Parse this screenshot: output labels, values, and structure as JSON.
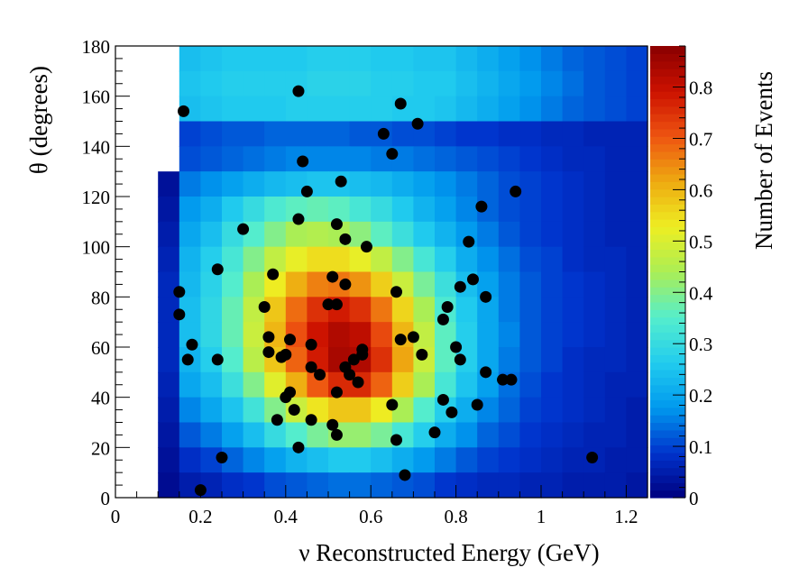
{
  "chart_data": {
    "type": "heatmap",
    "xlabel": "ν Reconstructed Energy (GeV)",
    "ylabel": "θ (degrees)",
    "colorbar_label": "Number of Events",
    "xlim": [
      0,
      1.25
    ],
    "ylim": [
      0,
      180
    ],
    "x_ticks": [
      0,
      0.2,
      0.4,
      0.6,
      0.8,
      1,
      1.2
    ],
    "x_tick_labels": [
      "0",
      "0.2",
      "0.4",
      "0.6",
      "0.8",
      "1",
      "1.2"
    ],
    "y_ticks": [
      0,
      20,
      40,
      60,
      80,
      100,
      120,
      140,
      160,
      180
    ],
    "y_tick_labels": [
      "0",
      "20",
      "40",
      "60",
      "80",
      "100",
      "120",
      "140",
      "160",
      "180"
    ],
    "zlim": [
      0,
      0.88
    ],
    "z_ticks": [
      0,
      0.1,
      0.2,
      0.3,
      0.4,
      0.5,
      0.6,
      0.7,
      0.8
    ],
    "z_tick_labels": [
      "0",
      "0.1",
      "0.2",
      "0.3",
      "0.4",
      "0.5",
      "0.6",
      "0.7",
      "0.8"
    ],
    "colormap": [
      "#00007f",
      "#0033cc",
      "#0099ee",
      "#22ccee",
      "#55eecc",
      "#aaee55",
      "#eeee22",
      "#eeaa11",
      "#ee5511",
      "#cc1100",
      "#8a0000"
    ],
    "heatmap": {
      "x_edges_start": 0.1,
      "x_bin_width": 0.05,
      "y_bin_width": 10,
      "rows_y_start": 180,
      "rows": [
        [
          null,
          0.24,
          0.25,
          0.26,
          0.26,
          0.26,
          0.26,
          0.27,
          0.27,
          0.27,
          0.26,
          0.26,
          0.25,
          0.25,
          0.23,
          0.21,
          0.19,
          0.17,
          0.15,
          0.13,
          0.12,
          0.11,
          0.1,
          0.09
        ],
        [
          null,
          0.25,
          0.26,
          0.27,
          0.27,
          0.27,
          0.27,
          0.28,
          0.28,
          0.28,
          0.27,
          0.27,
          0.26,
          0.26,
          0.24,
          0.22,
          0.2,
          0.18,
          0.16,
          0.14,
          0.12,
          0.11,
          0.1,
          0.09
        ],
        [
          null,
          0.24,
          0.25,
          0.26,
          0.26,
          0.26,
          0.27,
          0.27,
          0.27,
          0.27,
          0.27,
          0.26,
          0.26,
          0.25,
          0.23,
          0.21,
          0.19,
          0.17,
          0.15,
          0.13,
          0.12,
          0.11,
          0.1,
          0.09
        ],
        [
          null,
          0.1,
          0.11,
          0.12,
          0.12,
          0.13,
          0.13,
          0.13,
          0.13,
          0.12,
          0.12,
          0.11,
          0.11,
          0.1,
          0.09,
          0.09,
          0.08,
          0.08,
          0.07,
          0.07,
          0.06,
          0.06,
          0.06,
          0.05
        ],
        [
          null,
          0.11,
          0.12,
          0.13,
          0.14,
          0.15,
          0.16,
          0.16,
          0.16,
          0.16,
          0.15,
          0.15,
          0.14,
          0.13,
          0.12,
          0.11,
          0.1,
          0.09,
          0.08,
          0.07,
          0.07,
          0.06,
          0.06,
          0.05
        ],
        [
          0.03,
          0.15,
          0.17,
          0.19,
          0.21,
          0.23,
          0.24,
          0.25,
          0.25,
          0.24,
          0.23,
          0.21,
          0.19,
          0.17,
          0.15,
          0.13,
          0.11,
          0.1,
          0.09,
          0.08,
          0.07,
          0.06,
          0.06,
          0.05
        ],
        [
          0.04,
          0.18,
          0.21,
          0.26,
          0.3,
          0.34,
          0.36,
          0.37,
          0.36,
          0.33,
          0.3,
          0.26,
          0.22,
          0.19,
          0.16,
          0.13,
          0.11,
          0.1,
          0.09,
          0.08,
          0.07,
          0.06,
          0.06,
          0.05
        ],
        [
          0.05,
          0.2,
          0.24,
          0.3,
          0.35,
          0.4,
          0.44,
          0.45,
          0.44,
          0.41,
          0.36,
          0.31,
          0.26,
          0.22,
          0.18,
          0.15,
          0.12,
          0.1,
          0.09,
          0.08,
          0.07,
          0.06,
          0.06,
          0.05
        ],
        [
          0.06,
          0.22,
          0.27,
          0.33,
          0.4,
          0.47,
          0.52,
          0.55,
          0.55,
          0.52,
          0.47,
          0.4,
          0.33,
          0.27,
          0.21,
          0.17,
          0.14,
          0.11,
          0.1,
          0.08,
          0.07,
          0.07,
          0.06,
          0.05
        ],
        [
          0.07,
          0.23,
          0.28,
          0.35,
          0.44,
          0.53,
          0.61,
          0.66,
          0.67,
          0.64,
          0.57,
          0.48,
          0.39,
          0.31,
          0.24,
          0.19,
          0.15,
          0.12,
          0.1,
          0.09,
          0.08,
          0.07,
          0.06,
          0.05
        ],
        [
          0.07,
          0.24,
          0.29,
          0.37,
          0.47,
          0.58,
          0.68,
          0.75,
          0.78,
          0.75,
          0.67,
          0.56,
          0.44,
          0.34,
          0.26,
          0.2,
          0.15,
          0.12,
          0.1,
          0.09,
          0.08,
          0.07,
          0.06,
          0.05
        ],
        [
          0.07,
          0.24,
          0.29,
          0.37,
          0.48,
          0.6,
          0.71,
          0.79,
          0.83,
          0.81,
          0.72,
          0.6,
          0.47,
          0.36,
          0.27,
          0.2,
          0.16,
          0.12,
          0.1,
          0.09,
          0.08,
          0.07,
          0.06,
          0.05
        ],
        [
          0.07,
          0.22,
          0.27,
          0.35,
          0.46,
          0.58,
          0.69,
          0.78,
          0.84,
          0.83,
          0.75,
          0.62,
          0.48,
          0.36,
          0.27,
          0.2,
          0.15,
          0.12,
          0.1,
          0.08,
          0.07,
          0.07,
          0.06,
          0.05
        ],
        [
          0.06,
          0.2,
          0.24,
          0.31,
          0.4,
          0.51,
          0.61,
          0.7,
          0.76,
          0.76,
          0.69,
          0.57,
          0.44,
          0.33,
          0.25,
          0.19,
          0.14,
          0.11,
          0.09,
          0.08,
          0.07,
          0.06,
          0.06,
          0.05
        ],
        [
          0.05,
          0.16,
          0.2,
          0.25,
          0.32,
          0.4,
          0.48,
          0.54,
          0.58,
          0.58,
          0.53,
          0.44,
          0.35,
          0.27,
          0.21,
          0.16,
          0.13,
          0.1,
          0.09,
          0.08,
          0.07,
          0.06,
          0.05,
          0.05
        ],
        [
          0.04,
          0.12,
          0.15,
          0.19,
          0.24,
          0.3,
          0.35,
          0.39,
          0.42,
          0.42,
          0.39,
          0.33,
          0.27,
          0.21,
          0.17,
          0.13,
          0.11,
          0.09,
          0.08,
          0.07,
          0.06,
          0.06,
          0.05,
          0.05
        ],
        [
          0.03,
          0.08,
          0.1,
          0.13,
          0.16,
          0.19,
          0.22,
          0.24,
          0.26,
          0.26,
          0.24,
          0.21,
          0.18,
          0.15,
          0.12,
          0.1,
          0.09,
          0.08,
          0.07,
          0.06,
          0.06,
          0.05,
          0.05,
          0.04
        ],
        [
          0.02,
          0.05,
          0.06,
          0.08,
          0.09,
          0.11,
          0.12,
          0.13,
          0.14,
          0.14,
          0.13,
          0.12,
          0.11,
          0.09,
          0.08,
          0.07,
          0.07,
          0.06,
          0.06,
          0.05,
          0.05,
          0.05,
          0.04,
          0.04
        ]
      ]
    },
    "points": [
      {
        "x": 0.16,
        "y": 154
      },
      {
        "x": 0.15,
        "y": 82
      },
      {
        "x": 0.15,
        "y": 73
      },
      {
        "x": 0.18,
        "y": 61
      },
      {
        "x": 0.17,
        "y": 55
      },
      {
        "x": 0.2,
        "y": 3
      },
      {
        "x": 0.24,
        "y": 91
      },
      {
        "x": 0.24,
        "y": 55
      },
      {
        "x": 0.25,
        "y": 16
      },
      {
        "x": 0.3,
        "y": 107
      },
      {
        "x": 0.35,
        "y": 76
      },
      {
        "x": 0.36,
        "y": 64
      },
      {
        "x": 0.36,
        "y": 58
      },
      {
        "x": 0.37,
        "y": 89
      },
      {
        "x": 0.38,
        "y": 31
      },
      {
        "x": 0.39,
        "y": 56
      },
      {
        "x": 0.4,
        "y": 57
      },
      {
        "x": 0.4,
        "y": 40
      },
      {
        "x": 0.41,
        "y": 42
      },
      {
        "x": 0.41,
        "y": 63
      },
      {
        "x": 0.42,
        "y": 35
      },
      {
        "x": 0.43,
        "y": 162
      },
      {
        "x": 0.43,
        "y": 111
      },
      {
        "x": 0.43,
        "y": 20
      },
      {
        "x": 0.44,
        "y": 134
      },
      {
        "x": 0.45,
        "y": 122
      },
      {
        "x": 0.46,
        "y": 61
      },
      {
        "x": 0.46,
        "y": 52
      },
      {
        "x": 0.46,
        "y": 31
      },
      {
        "x": 0.48,
        "y": 49
      },
      {
        "x": 0.5,
        "y": 77
      },
      {
        "x": 0.51,
        "y": 88
      },
      {
        "x": 0.51,
        "y": 29
      },
      {
        "x": 0.52,
        "y": 109
      },
      {
        "x": 0.52,
        "y": 42
      },
      {
        "x": 0.52,
        "y": 77
      },
      {
        "x": 0.52,
        "y": 25
      },
      {
        "x": 0.53,
        "y": 126
      },
      {
        "x": 0.54,
        "y": 103
      },
      {
        "x": 0.54,
        "y": 85
      },
      {
        "x": 0.54,
        "y": 52
      },
      {
        "x": 0.55,
        "y": 49
      },
      {
        "x": 0.56,
        "y": 55
      },
      {
        "x": 0.57,
        "y": 46
      },
      {
        "x": 0.58,
        "y": 59
      },
      {
        "x": 0.58,
        "y": 57
      },
      {
        "x": 0.59,
        "y": 100
      },
      {
        "x": 0.63,
        "y": 145
      },
      {
        "x": 0.65,
        "y": 137
      },
      {
        "x": 0.65,
        "y": 37
      },
      {
        "x": 0.66,
        "y": 82
      },
      {
        "x": 0.66,
        "y": 23
      },
      {
        "x": 0.67,
        "y": 157
      },
      {
        "x": 0.67,
        "y": 63
      },
      {
        "x": 0.68,
        "y": 9
      },
      {
        "x": 0.7,
        "y": 64
      },
      {
        "x": 0.71,
        "y": 149
      },
      {
        "x": 0.72,
        "y": 57
      },
      {
        "x": 0.75,
        "y": 26
      },
      {
        "x": 0.77,
        "y": 71
      },
      {
        "x": 0.77,
        "y": 39
      },
      {
        "x": 0.78,
        "y": 76
      },
      {
        "x": 0.79,
        "y": 34
      },
      {
        "x": 0.8,
        "y": 60
      },
      {
        "x": 0.81,
        "y": 84
      },
      {
        "x": 0.81,
        "y": 55
      },
      {
        "x": 0.83,
        "y": 102
      },
      {
        "x": 0.84,
        "y": 87
      },
      {
        "x": 0.85,
        "y": 37
      },
      {
        "x": 0.86,
        "y": 116
      },
      {
        "x": 0.87,
        "y": 80
      },
      {
        "x": 0.87,
        "y": 50
      },
      {
        "x": 0.91,
        "y": 47
      },
      {
        "x": 0.93,
        "y": 47
      },
      {
        "x": 0.94,
        "y": 122
      },
      {
        "x": 1.12,
        "y": 16
      }
    ]
  }
}
